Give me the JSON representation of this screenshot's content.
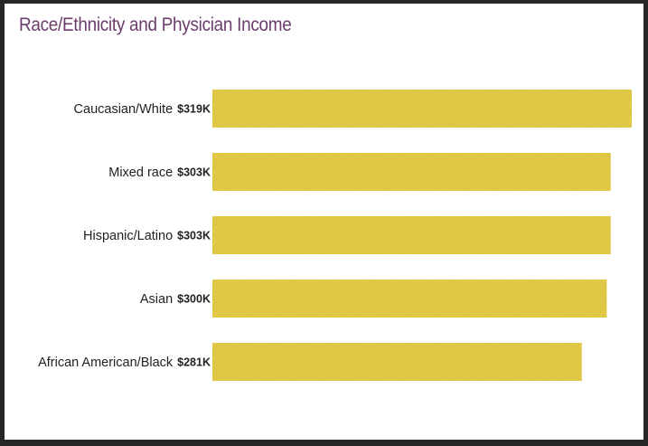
{
  "colors": {
    "title": "#6b3d6b",
    "bar": "#dfc643",
    "bar_texture": "#e9d45f",
    "text": "#222222"
  },
  "chart_data": {
    "type": "bar",
    "orientation": "horizontal",
    "title": "Race/Ethnicity and Physician Income",
    "xlabel": "",
    "ylabel": "",
    "unit": "$K",
    "categories": [
      "Caucasian/White",
      "Mixed race",
      "Hispanic/Latino",
      "Asian",
      "African American/Black"
    ],
    "values": [
      319,
      303,
      303,
      300,
      281
    ],
    "value_labels": [
      "$319K",
      "$303K",
      "$303K",
      "$300K",
      "$281K"
    ],
    "xlim": [
      0,
      319
    ],
    "grid": false,
    "legend": "none"
  }
}
